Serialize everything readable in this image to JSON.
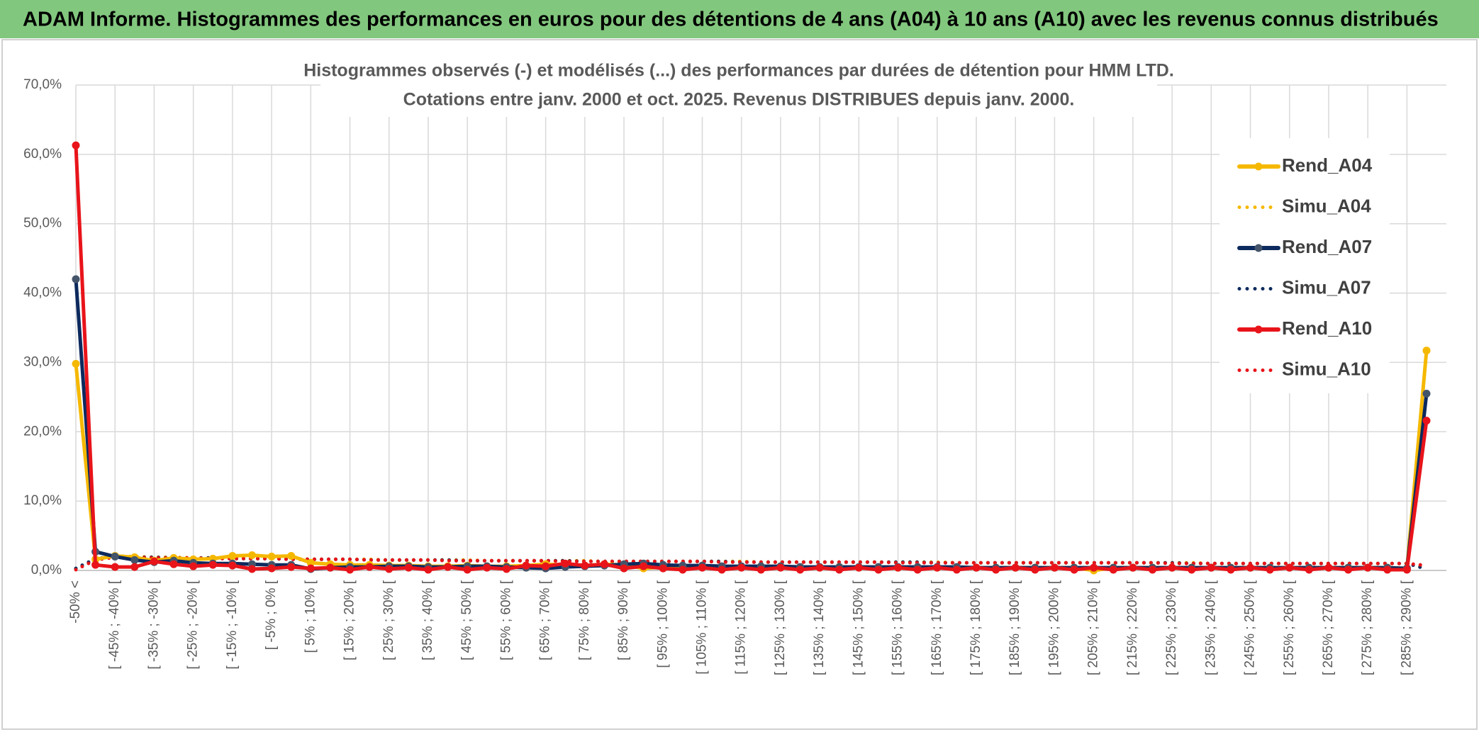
{
  "header": {
    "title": "ADAM Informe. Histogrammes des performances en euros pour des détentions de 4 ans (A04) à 10 ans (A10) avec les revenus connus distribués"
  },
  "chart_data": {
    "type": "line",
    "title": "Histogrammes observés (-) et modélisés (...) des performances par durées de détention pour HMM LTD.",
    "subtitle": "Cotations entre janv. 2000 et oct. 2025. Revenus DISTRIBUES depuis janv. 2000.",
    "categories": [
      "-50% <",
      null,
      "[ -45% ; -40% [",
      null,
      "[ -35% ; -30% [",
      null,
      "[ -25% ; -20% [",
      null,
      "[ -15% ; -10% [",
      null,
      "[ -5% ; 0% [",
      null,
      "[ 5% ; 10% [",
      null,
      "[ 15% ; 20% [",
      null,
      "[ 25% ; 30% [",
      null,
      "[ 35% ; 40% [",
      null,
      "[ 45% ; 50% [",
      null,
      "[ 55% ; 60% [",
      null,
      "[ 65% ; 70% [",
      null,
      "[ 75% ; 80% [",
      null,
      "[ 85% ; 90% [",
      null,
      "[ 95% ; 100% [",
      null,
      "[ 105% ; 110% [",
      null,
      "[ 115% ; 120% [",
      null,
      "[ 125% ; 130% [",
      null,
      "[ 135% ; 140% [",
      null,
      "[ 145% ; 150% [",
      null,
      "[ 155% ; 160% [",
      null,
      "[ 165% ; 170% [",
      null,
      "[ 175% ; 180% [",
      null,
      "[ 185% ; 190% [",
      null,
      "[ 195% ; 200% [",
      null,
      "[ 205% ; 210% [",
      null,
      "[ 215% ; 220% [",
      null,
      "[ 225% ; 230% [",
      null,
      "[ 235% ; 240% [",
      null,
      "[ 245% ; 250% [",
      null,
      "[ 255% ; 260% [",
      null,
      "[ 265% ; 270% [",
      null,
      "[ 275% ; 280% [",
      null,
      "[ 285% ; 290% [",
      null
    ],
    "ylim": [
      0,
      70
    ],
    "yticks": [
      {
        "value": 0,
        "label": "0,0%"
      },
      {
        "value": 10,
        "label": "10,0%"
      },
      {
        "value": 20,
        "label": "20,0%"
      },
      {
        "value": 30,
        "label": "30,0%"
      },
      {
        "value": 40,
        "label": "40,0%"
      },
      {
        "value": 50,
        "label": "50,0%"
      },
      {
        "value": 60,
        "label": "60,0%"
      },
      {
        "value": 70,
        "label": "70,0%"
      }
    ],
    "grid": true,
    "legend": "right",
    "series": [
      {
        "name": "Rend_A04",
        "color": "#f5b800",
        "style": "solid",
        "values": [
          29.8,
          1.6,
          2.1,
          1.9,
          1.4,
          1.8,
          1.6,
          1.7,
          2.1,
          2.2,
          2.0,
          2.1,
          1.1,
          0.9,
          0.8,
          0.8,
          0.7,
          0.7,
          0.6,
          0.6,
          0.7,
          0.6,
          0.6,
          0.7,
          0.9,
          0.8,
          0.7,
          0.9,
          0.8,
          0.3,
          0.5,
          0.5,
          0.5,
          0.4,
          0.5,
          0.4,
          0.5,
          0.4,
          0.4,
          0.5,
          0.4,
          0.4,
          0.4,
          0.4,
          0.4,
          0.4,
          0.4,
          0.4,
          0.4,
          0.4,
          0.4,
          0.4,
          0.0,
          0.4,
          0.4,
          0.4,
          0.4,
          0.4,
          0.4,
          0.4,
          0.4,
          0.4,
          0.4,
          0.4,
          0.4,
          0.4,
          0.4,
          0.4,
          0.3,
          31.7
        ]
      },
      {
        "name": "Simu_A04",
        "color": "#f5b800",
        "style": "dotted",
        "values": [
          0.2,
          1.6,
          2.1,
          2.0,
          1.9,
          1.9,
          1.8,
          1.8,
          1.8,
          1.7,
          1.7,
          1.7,
          1.6,
          1.6,
          1.6,
          1.6,
          1.5,
          1.5,
          1.5,
          1.5,
          1.5,
          1.4,
          1.4,
          1.4,
          1.4,
          1.4,
          1.4,
          1.3,
          1.3,
          1.3,
          1.3,
          1.3,
          1.3,
          1.3,
          1.3,
          1.2,
          1.2,
          1.2,
          1.2,
          1.2,
          1.2,
          1.2,
          1.2,
          1.2,
          1.2,
          1.1,
          1.1,
          1.1,
          1.1,
          1.1,
          1.1,
          1.1,
          1.1,
          1.1,
          1.1,
          1.1,
          1.1,
          1.1,
          1.0,
          1.0,
          1.0,
          1.0,
          1.0,
          1.0,
          1.0,
          1.0,
          1.0,
          1.0,
          1.0,
          0.5
        ]
      },
      {
        "name": "Rend_A07",
        "color": "#0d2a5e",
        "style": "solid",
        "values": [
          42.0,
          2.7,
          2.0,
          1.5,
          1.2,
          1.4,
          1.1,
          1.0,
          1.0,
          0.9,
          0.8,
          0.8,
          0.2,
          0.4,
          0.5,
          0.5,
          0.6,
          0.6,
          0.5,
          0.5,
          0.6,
          0.6,
          0.5,
          0.4,
          0.3,
          0.5,
          0.6,
          0.7,
          0.9,
          1.0,
          0.8,
          0.7,
          0.7,
          0.6,
          0.6,
          0.6,
          0.6,
          0.5,
          0.5,
          0.5,
          0.5,
          0.5,
          0.5,
          0.5,
          0.5,
          0.5,
          0.4,
          0.4,
          0.4,
          0.4,
          0.4,
          0.4,
          0.4,
          0.4,
          0.4,
          0.4,
          0.4,
          0.4,
          0.4,
          0.4,
          0.4,
          0.4,
          0.4,
          0.4,
          0.4,
          0.4,
          0.4,
          0.4,
          0.3,
          25.5
        ]
      },
      {
        "name": "Simu_A07",
        "color": "#0d2a5e",
        "style": "dotted",
        "values": [
          0.3,
          1.7,
          2.0,
          1.9,
          1.9,
          1.8,
          1.8,
          1.8,
          1.7,
          1.7,
          1.7,
          1.6,
          1.6,
          1.6,
          1.6,
          1.5,
          1.5,
          1.5,
          1.5,
          1.5,
          1.4,
          1.4,
          1.4,
          1.4,
          1.4,
          1.4,
          1.3,
          1.3,
          1.3,
          1.3,
          1.3,
          1.3,
          1.3,
          1.3,
          1.2,
          1.2,
          1.2,
          1.2,
          1.2,
          1.2,
          1.2,
          1.2,
          1.2,
          1.2,
          1.1,
          1.1,
          1.1,
          1.1,
          1.1,
          1.1,
          1.1,
          1.1,
          1.1,
          1.1,
          1.1,
          1.1,
          1.1,
          1.0,
          1.0,
          1.0,
          1.0,
          1.0,
          1.0,
          1.0,
          1.0,
          1.0,
          1.0,
          1.0,
          1.0,
          0.2
        ]
      },
      {
        "name": "Rend_A10",
        "color": "#e8141a",
        "style": "solid",
        "values": [
          61.3,
          0.8,
          0.5,
          0.5,
          1.3,
          0.9,
          0.6,
          0.8,
          0.7,
          0.2,
          0.3,
          0.5,
          0.3,
          0.4,
          0.1,
          0.5,
          0.2,
          0.4,
          0.1,
          0.5,
          0.1,
          0.4,
          0.2,
          0.7,
          0.6,
          1.0,
          0.7,
          0.9,
          0.3,
          0.6,
          0.3,
          0.1,
          0.4,
          0.1,
          0.4,
          0.1,
          0.4,
          0.1,
          0.4,
          0.1,
          0.4,
          0.1,
          0.4,
          0.1,
          0.4,
          0.1,
          0.4,
          0.1,
          0.4,
          0.1,
          0.4,
          0.1,
          0.4,
          0.1,
          0.4,
          0.1,
          0.4,
          0.1,
          0.4,
          0.1,
          0.4,
          0.1,
          0.4,
          0.1,
          0.4,
          0.1,
          0.4,
          0.1,
          0.1,
          21.6
        ]
      },
      {
        "name": "Simu_A10",
        "color": "#e8141a",
        "style": "dotted",
        "values": [
          0.1,
          1.5,
          1.9,
          1.9,
          1.8,
          1.8,
          1.8,
          1.7,
          1.7,
          1.7,
          1.7,
          1.6,
          1.6,
          1.6,
          1.6,
          1.5,
          1.5,
          1.5,
          1.5,
          1.4,
          1.4,
          1.4,
          1.4,
          1.4,
          1.4,
          1.3,
          1.3,
          1.3,
          1.3,
          1.3,
          1.3,
          1.3,
          1.3,
          1.2,
          1.2,
          1.2,
          1.2,
          1.2,
          1.2,
          1.2,
          1.2,
          1.2,
          1.1,
          1.1,
          1.1,
          1.1,
          1.1,
          1.1,
          1.1,
          1.1,
          1.1,
          1.1,
          1.1,
          1.1,
          1.1,
          1.1,
          1.0,
          1.0,
          1.0,
          1.0,
          1.0,
          1.0,
          1.0,
          1.0,
          1.0,
          1.0,
          1.0,
          1.0,
          1.0,
          0.7
        ]
      }
    ]
  }
}
